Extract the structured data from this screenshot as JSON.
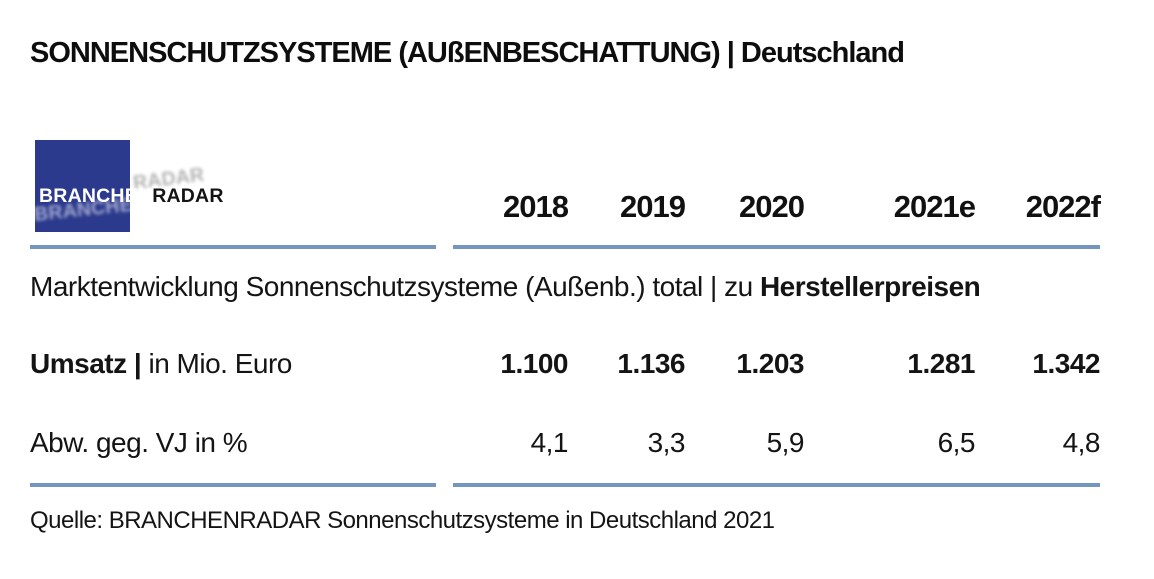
{
  "title": "SONNENSCHUTZSYSTEME (AUßENBESCHATTUNG) | Deutschland",
  "logo": {
    "part1": "BRANCHEN",
    "part2": "RADAR"
  },
  "table": {
    "year_headers": [
      "2018",
      "2019",
      "2020",
      "2021e",
      "2022f"
    ],
    "section_label": {
      "regular": "Marktentwicklung Sonnenschutzsysteme (Außenb.) total | zu ",
      "bold": "Herstellerpreisen"
    },
    "rows": [
      {
        "label_bold": "Umsatz |",
        "label_regular": " in Mio. Euro",
        "values": [
          "1.100",
          "1.136",
          "1.203",
          "1.281",
          "1.342"
        ]
      },
      {
        "label_bold": "",
        "label_regular": "Abw. geg. VJ in %",
        "values": [
          "4,1",
          "3,3",
          "5,9",
          "6,5",
          "4,8"
        ]
      }
    ]
  },
  "source": "Quelle: BRANCHENRADAR Sonnenschutzsysteme in Deutschland 2021",
  "colors": {
    "accent_line": "#7495be",
    "logo_blue": "#2c3a8e",
    "text": "#141414"
  },
  "chart_data": {
    "type": "table",
    "title": "SONNENSCHUTZSYSTEME (AUßENBESCHATTUNG) | Deutschland",
    "subtitle": "Marktentwicklung Sonnenschutzsysteme (Außenb.) total | zu Herstellerpreisen",
    "categories": [
      "2018",
      "2019",
      "2020",
      "2021e",
      "2022f"
    ],
    "series": [
      {
        "name": "Umsatz | in Mio. Euro",
        "values": [
          1100,
          1136,
          1203,
          1281,
          1342
        ]
      },
      {
        "name": "Abw. geg. VJ in %",
        "values": [
          4.1,
          3.3,
          5.9,
          6.5,
          4.8
        ]
      }
    ],
    "source": "Quelle: BRANCHENRADAR Sonnenschutzsysteme in Deutschland 2021"
  }
}
